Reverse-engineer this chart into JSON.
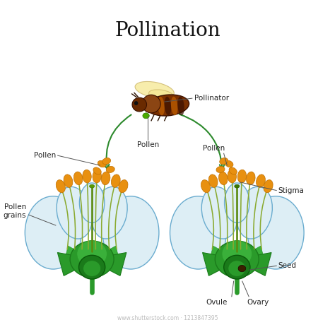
{
  "title": "Pollination",
  "title_fontsize": 20,
  "title_font": "serif",
  "bg_color": "#ffffff",
  "labels": {
    "pollinator": "Pollinator",
    "pollen_bee": "Pollen",
    "pollen_left": "Pollen",
    "pollen_right": "Pollen",
    "pollen_grains": "Pollen\ngrains",
    "stigma": "Stigma",
    "seed": "Seed",
    "ovule": "Ovule",
    "ovary": "Ovary"
  },
  "arrow_color": "#2d8a2d",
  "petal_color": "#ddeef5",
  "petal_edge": "#6aaccf",
  "sepal_color": "#2a9a2a",
  "stamen_color": "#8aaa30",
  "anther_color": "#e89010",
  "receptacle_color": "#2a9a2a",
  "ovary_color": "#1a7a1a",
  "label_fontsize": 7.5,
  "watermark": "www.shutterstock.com · 1213847395"
}
